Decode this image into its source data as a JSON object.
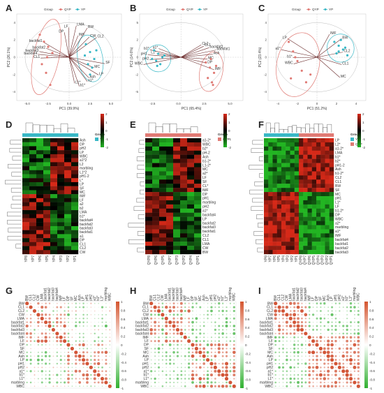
{
  "chart_data": [
    {
      "type": "scatter",
      "panel": "A",
      "legend": [
        "QYP",
        "YP"
      ],
      "xlabel": "PC1 (39.9%)",
      "ylabel": "PC2 (26.1%)",
      "xticks": [
        "-5.0",
        "-2.5",
        "0.0",
        "2.5",
        "5.0"
      ],
      "yticks": [
        "4",
        "2",
        "0",
        "-2",
        "-4"
      ],
      "xlim": [
        -5,
        5
      ],
      "ylim": [
        -5,
        5
      ],
      "series": [
        {
          "name": "QYP",
          "x": [
            -2.8,
            -2.4,
            -2.0,
            -1.6,
            -2.6,
            -2.2,
            -1.8,
            -2.1
          ],
          "y": [
            2.6,
            1.8,
            1.2,
            0.5,
            -0.8,
            -1.8,
            -3.2,
            0.0
          ]
        },
        {
          "name": "YP",
          "x": [
            1.6,
            2.0,
            2.4,
            1.8,
            2.2,
            2.6,
            2.0,
            1.5
          ],
          "y": [
            1.5,
            0.6,
            -0.2,
            -0.8,
            -1.2,
            0.8,
            -2.0,
            0.2
          ]
        }
      ],
      "loading_labels": [
        "backfat1",
        "backfat2",
        "backfat3",
        "backfat4",
        "CL1",
        "CL2",
        "CW",
        "BW",
        "IMF",
        "LMA",
        "LF",
        "DP",
        "SF",
        "MC",
        "LP",
        "Ash",
        "a1*",
        "b1*",
        "L1*"
      ]
    },
    {
      "type": "scatter",
      "panel": "B",
      "legend": [
        "QYP",
        "YP"
      ],
      "xlabel": "PC1 (65.4%)",
      "ylabel": "PC2 (14.6%)",
      "xticks": [
        "-2.5",
        "0.0",
        "2.5",
        "5.0"
      ],
      "yticks": [
        "5",
        "2",
        "0",
        "-2",
        "-5"
      ],
      "xlim": [
        -4,
        6
      ],
      "ylim": [
        -5,
        5
      ],
      "series": [
        {
          "name": "QYP",
          "x": [
            2.4,
            2.8,
            3.2,
            2.6,
            3.0,
            3.4,
            2.9,
            3.1
          ],
          "y": [
            -0.6,
            -1.2,
            -1.8,
            -2.4,
            -2.9,
            -1.0,
            -0.2,
            -3.2
          ]
        },
        {
          "name": "YP",
          "x": [
            -2.6,
            -2.2,
            -1.8,
            -2.4,
            -2.0,
            -1.6,
            -2.8,
            -2.3
          ],
          "y": [
            0.8,
            0.4,
            0.0,
            -0.4,
            -0.8,
            0.2,
            -0.2,
            -1.0
          ]
        }
      ],
      "loading_labels": [
        "a1*",
        "b1*",
        "L1*",
        "pH1",
        "pH2",
        "WBC",
        "IMF",
        "DP",
        "MC",
        "Ash",
        "backfat1",
        "backfat2",
        "CL1",
        "CL2"
      ]
    },
    {
      "type": "scatter",
      "panel": "C",
      "legend": [
        "QYP",
        "YP"
      ],
      "xlabel": "PC1 (51.2%)",
      "ylabel": "PC2 (23.4%)",
      "xticks": [
        "-4",
        "-2",
        "0",
        "2",
        "4"
      ],
      "yticks": [
        "4",
        "2",
        "0",
        "-2",
        "-4"
      ],
      "xlim": [
        -4.5,
        4.5
      ],
      "ylim": [
        -4.5,
        4.5
      ],
      "series": [
        {
          "name": "QYP",
          "x": [
            -2.6,
            -2.2,
            -1.8,
            -1.4,
            -2.4,
            -1.0,
            -0.6,
            -2.0
          ],
          "y": [
            1.6,
            0.6,
            -0.4,
            -1.4,
            -2.2,
            -2.6,
            -1.8,
            0.0
          ]
        },
        {
          "name": "YP",
          "x": [
            1.6,
            2.0,
            2.4,
            2.8,
            1.8,
            2.2,
            2.6,
            2.0
          ],
          "y": [
            1.6,
            1.2,
            0.8,
            0.2,
            0.4,
            1.8,
            1.0,
            0.6
          ]
        }
      ],
      "loading_labels": [
        "LP",
        "a1*",
        "b1*",
        "WBC",
        "MC",
        "CL1",
        "CL2",
        "BW",
        "IMF"
      ]
    },
    {
      "type": "heatmap",
      "panel": "D",
      "group_legend": {
        "title": "Group",
        "items": [
          "YP"
        ]
      },
      "colorbar_ticks": [
        "2",
        "1",
        "0",
        "-1",
        "-2"
      ],
      "columns": [
        "YP8",
        "YP7",
        "YP6",
        "YP5",
        "YP4",
        "YP3",
        "YP2",
        "YP1"
      ],
      "rows": [
        "Ash",
        "DP",
        "pH2",
        "LP",
        "WBC",
        "a1*2",
        "L2",
        "marbling",
        "L1*2",
        "pH1-2",
        "L*",
        "LP",
        "SF",
        "MC",
        "IMF",
        "LF",
        "a2",
        "b2",
        "LMA",
        "b1*",
        "backfat4",
        "backfat2",
        "backfat3",
        "backfat1",
        "a1",
        "DP",
        "CL1",
        "CL2",
        "CW"
      ]
    },
    {
      "type": "heatmap",
      "panel": "E",
      "group_legend": {
        "title": "Group",
        "items": [
          "QYP"
        ]
      },
      "colorbar_ticks": [
        "2",
        "1",
        "0",
        "-1",
        "-2"
      ],
      "columns": [
        "QYP8",
        "QYP6",
        "QYP5",
        "QYP7",
        "QYP3",
        "QYP2",
        "QYP4",
        "QYP1"
      ],
      "rows": [
        "a1-2*",
        "WBC",
        "b2*",
        "pH-2",
        "Ash",
        "b1-2*",
        "L1-2*",
        "MC",
        "a2*",
        "LF",
        "SF",
        "CL*",
        "IMF",
        "DP",
        "pH1",
        "marbling",
        "pH2",
        "a1*",
        "backfat4",
        "LP",
        "backfat2",
        "backfat3",
        "backfat1",
        "CL2",
        "CL1",
        "LMA",
        "CW",
        "BW"
      ]
    },
    {
      "type": "heatmap",
      "panel": "F",
      "group_legend": {
        "title": "Group",
        "items": [
          "YP",
          "QYP"
        ]
      },
      "colorbar_ticks": [
        "2",
        "1",
        "0",
        "-1",
        "-2"
      ],
      "columns": [
        "YP8",
        "YP7",
        "YP6",
        "YP5",
        "YP4",
        "YP3",
        "YP2",
        "YP1",
        "QYP8",
        "QYP7",
        "QYP6",
        "QYP5",
        "QYP4",
        "QYP3",
        "QYP2",
        "QYP1"
      ],
      "rows": [
        "LP",
        "L2*",
        "a1-2*",
        "LMA",
        "b1*",
        "b2*",
        "pH1-2",
        "Ash",
        "b1-2*",
        "CL2",
        "CL1",
        "BW",
        "SF",
        "MC",
        "pH1",
        "L1*",
        "LF",
        "b1-2*",
        "DP",
        "WBC",
        "a2*",
        "marbling",
        "a1*",
        "IMF",
        "backfat4",
        "backfat1",
        "backfat2",
        "backfat3"
      ]
    },
    {
      "type": "heatmap",
      "panel": "G",
      "subtype": "correlation",
      "colorbar_ticks": [
        "1",
        "0.8",
        "0.6",
        "0.4",
        "0.2",
        "0",
        "-0.2",
        "-0.4",
        "-0.6",
        "-0.8",
        "-1"
      ]
    },
    {
      "type": "heatmap",
      "panel": "H",
      "subtype": "correlation",
      "colorbar_ticks": [
        "1",
        "0.8",
        "0.6",
        "0.4",
        "0.2",
        "0",
        "-0.2",
        "-0.4",
        "-0.6",
        "-0.8",
        "-1"
      ]
    },
    {
      "type": "heatmap",
      "panel": "I",
      "subtype": "correlation",
      "colorbar_ticks": [
        "1",
        "0.8",
        "0.6",
        "0.4",
        "0.2",
        "0",
        "-0.2",
        "-0.4",
        "-0.6",
        "-0.8",
        "-1"
      ]
    }
  ],
  "corr_vars": [
    "BW",
    "CL1",
    "CL2",
    "CW",
    "LMA",
    "backfat1",
    "backfat2",
    "backfat3",
    "backfat4",
    "IMF",
    "LF",
    "DP",
    "SF",
    "MC",
    "Ash",
    "LP",
    "pH1",
    "pH2",
    "a1*",
    "b1*",
    "L1*",
    "marbling",
    "WBC"
  ],
  "colors": {
    "qyp": "#e07a74",
    "yp": "#39b8c6",
    "high": "#d62918",
    "low": "#22b522",
    "mid": "#000000",
    "arrow": "#6a2a2a"
  }
}
